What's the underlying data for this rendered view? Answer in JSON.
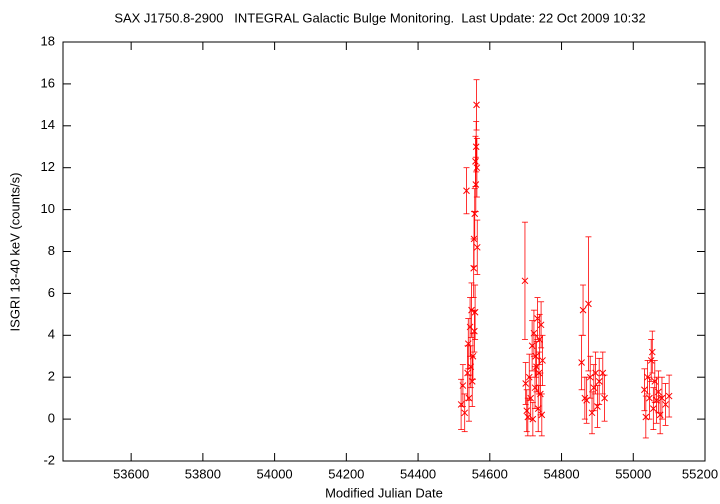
{
  "chart_data": {
    "type": "scatter",
    "title": "SAX J1750.8-2900   INTEGRAL Galactic Bulge Monitoring.  Last Update: 22 Oct 2009 10:32",
    "x_label": "Modified Julian Date",
    "y_label": "ISGRI 18-40 keV (counts/s)",
    "xlim": [
      53410,
      55200
    ],
    "xticks": [
      53600,
      53800,
      54000,
      54200,
      54400,
      54600,
      54800,
      55000,
      55200
    ],
    "ylim": [
      -2,
      18
    ],
    "yticks": [
      -2,
      0,
      2,
      4,
      6,
      8,
      10,
      12,
      14,
      16,
      18
    ],
    "grid": false,
    "series": [
      {
        "color": "#ff0000",
        "x": [
          54520,
          54525,
          54530,
          54535,
          54538,
          54540,
          54542,
          54545,
          54547,
          54549,
          54551,
          54553,
          54555,
          54556,
          54557,
          54558,
          54559,
          54560,
          54561,
          54562,
          54563,
          54564,
          54565,
          54698,
          54700,
          54703,
          54706,
          54710,
          54714,
          54718,
          54720,
          54723,
          54726,
          54728,
          54730,
          54733,
          54735,
          54737,
          54739,
          54741,
          54743,
          54745,
          54747,
          54856,
          54860,
          54865,
          54870,
          54875,
          54880,
          54885,
          54890,
          54895,
          54900,
          54905,
          54915,
          54920,
          55031,
          55035,
          55040,
          55045,
          55050,
          55053,
          55056,
          55060,
          55065,
          55070,
          55075,
          55080,
          55090,
          55100
        ],
        "values": [
          0.7,
          1.6,
          0.3,
          10.9,
          2.2,
          3.6,
          1.0,
          4.4,
          2.5,
          5.2,
          1.8,
          3.0,
          7.2,
          8.6,
          4.2,
          9.8,
          5.1,
          12.3,
          11.2,
          13.0,
          15.0,
          12.0,
          8.2,
          6.6,
          1.7,
          0.4,
          0.1,
          2.0,
          1.0,
          3.5,
          0.0,
          4.1,
          1.5,
          3.0,
          2.5,
          4.8,
          0.5,
          2.2,
          3.8,
          1.2,
          4.5,
          0.2,
          2.8,
          2.7,
          5.2,
          1.0,
          0.9,
          5.5,
          2.0,
          0.3,
          1.5,
          2.2,
          0.6,
          1.8,
          2.2,
          1.0,
          1.4,
          0.1,
          2.0,
          1.0,
          2.8,
          3.2,
          0.5,
          1.8,
          0.9,
          1.3,
          0.2,
          1.0,
          0.7,
          1.1
        ],
        "errors": [
          1.2,
          1.0,
          0.9,
          1.1,
          1.3,
          1.2,
          1.1,
          1.4,
          1.0,
          1.3,
          1.2,
          1.1,
          1.4,
          1.3,
          1.0,
          1.2,
          1.3,
          1.2,
          1.3,
          1.2,
          1.2,
          1.4,
          1.3,
          2.8,
          1.0,
          1.0,
          0.9,
          1.1,
          1.0,
          1.2,
          0.8,
          1.1,
          1.0,
          1.0,
          1.2,
          1.0,
          1.1,
          1.0,
          1.2,
          1.0,
          1.1,
          1.0,
          1.2,
          1.3,
          1.2,
          1.0,
          1.1,
          3.2,
          1.0,
          1.0,
          1.1,
          1.0,
          1.0,
          1.1,
          1.0,
          1.1,
          1.0,
          1.0,
          0.8,
          1.0,
          1.0,
          1.0,
          1.0,
          1.0,
          1.1,
          1.0,
          0.9,
          1.0,
          1.0,
          1.0
        ]
      }
    ]
  }
}
